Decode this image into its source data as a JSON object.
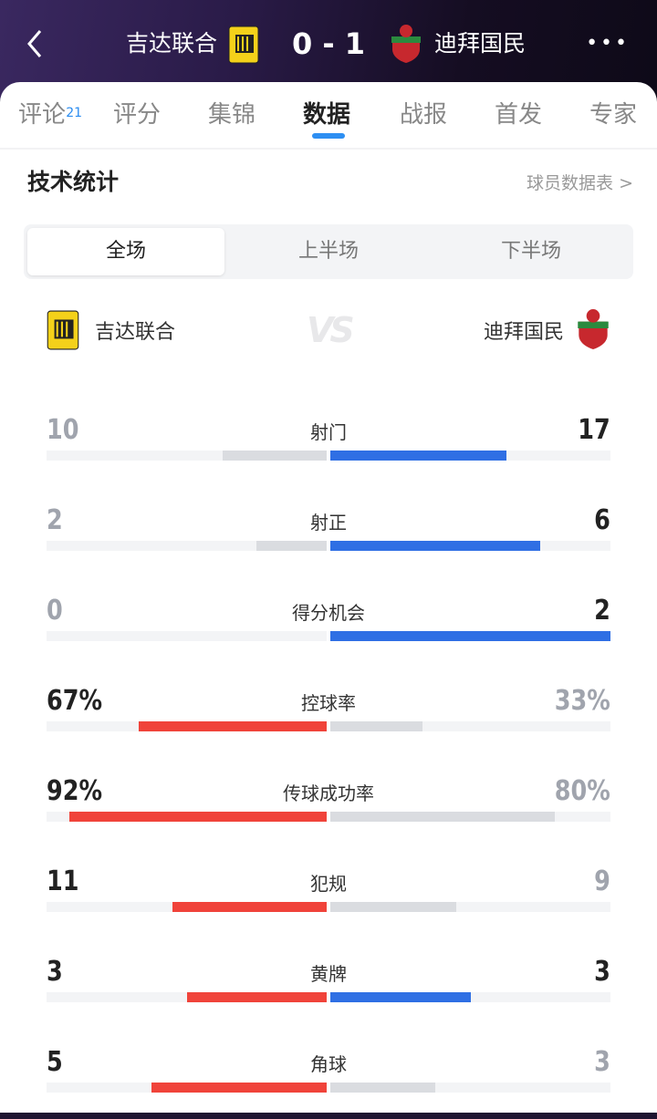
{
  "header": {
    "home": "吉达联合",
    "away": "迪拜国民",
    "score": "0 - 1"
  },
  "tabs": [
    {
      "label": "评论",
      "badge": "21"
    },
    {
      "label": "评分"
    },
    {
      "label": "集锦"
    },
    {
      "label": "数据",
      "active": true
    },
    {
      "label": "战报"
    },
    {
      "label": "首发"
    },
    {
      "label": "专家"
    }
  ],
  "section": {
    "title": "技术统计",
    "link": "球员数据表 >"
  },
  "segments": [
    "全场",
    "上半场",
    "下半场"
  ],
  "teams": {
    "home": "吉达联合",
    "away": "迪拜国民",
    "vs": "VS"
  },
  "colors": {
    "home": "#f0433a",
    "away": "#2f6fe4",
    "neutral": "#dadce0",
    "lead_text": "#222222",
    "trail_text": "#a0a4ad"
  },
  "stats": [
    {
      "label": "射门",
      "home": "10",
      "away": "17",
      "home_share": 0.37,
      "away_share": 0.63,
      "home_lead": false,
      "away_lead": true
    },
    {
      "label": "射正",
      "home": "2",
      "away": "6",
      "home_share": 0.25,
      "away_share": 0.75,
      "home_lead": false,
      "away_lead": true
    },
    {
      "label": "得分机会",
      "home": "0",
      "away": "2",
      "home_share": 0,
      "away_share": 1,
      "home_lead": false,
      "away_lead": true
    },
    {
      "label": "控球率",
      "home": "67%",
      "away": "33%",
      "home_share": 0.67,
      "away_share": 0.33,
      "home_lead": true,
      "away_lead": false
    },
    {
      "label": "传球成功率",
      "home": "92%",
      "away": "80%",
      "home_share": 0.92,
      "away_share": 0.8,
      "home_lead": true,
      "away_lead": false
    },
    {
      "label": "犯规",
      "home": "11",
      "away": "9",
      "home_share": 0.55,
      "away_share": 0.45,
      "home_lead": true,
      "away_lead": false
    },
    {
      "label": "黄牌",
      "home": "3",
      "away": "3",
      "home_share": 0.5,
      "away_share": 0.5,
      "home_lead": true,
      "away_lead": true
    },
    {
      "label": "角球",
      "home": "5",
      "away": "3",
      "home_share": 0.625,
      "away_share": 0.375,
      "home_lead": true,
      "away_lead": false
    }
  ]
}
